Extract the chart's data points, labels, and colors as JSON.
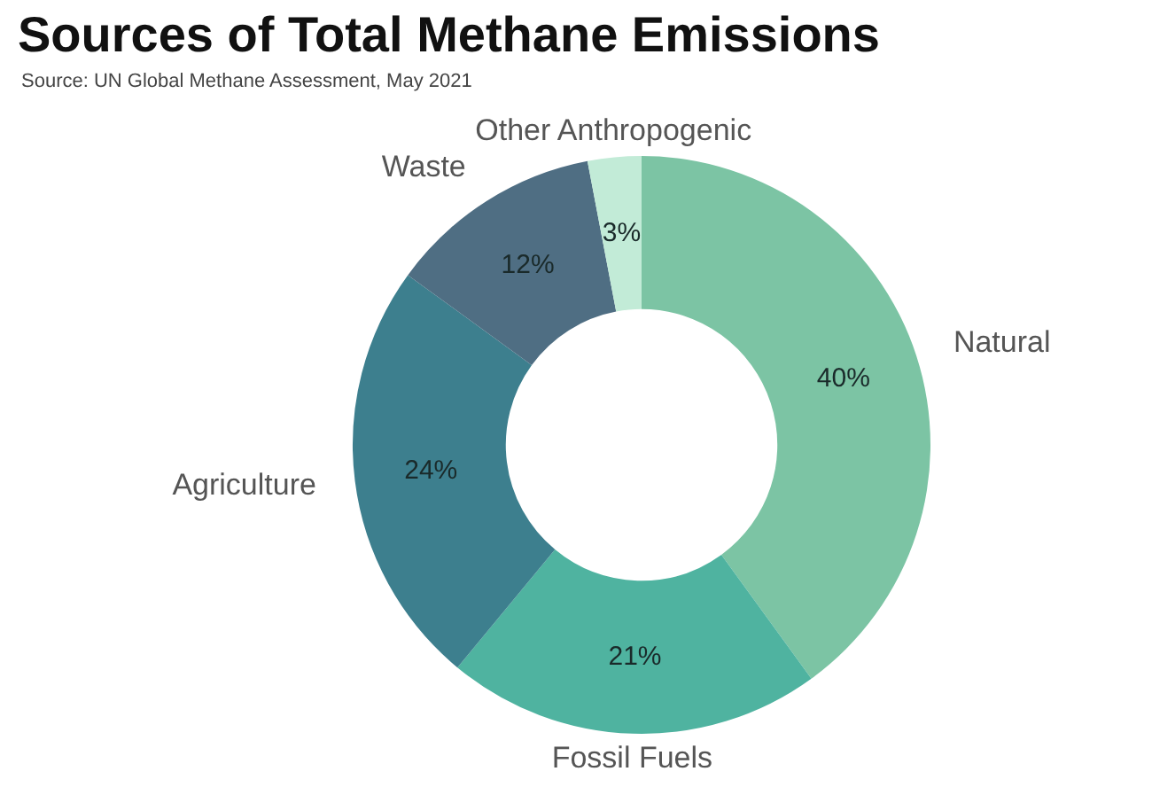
{
  "chart_data": {
    "type": "donut",
    "title": "Sources of Total Methane Emissions",
    "annotations": [
      "Source: UN Global Methane Assessment, May 2021"
    ],
    "categories": [
      "Natural",
      "Fossil Fuels",
      "Agriculture",
      "Waste",
      "Other Anthropogenic"
    ],
    "values": [
      40,
      21,
      24,
      12,
      3
    ],
    "value_labels": [
      "40%",
      "21%",
      "24%",
      "12%",
      "3%"
    ],
    "colors": [
      "#7cc4a4",
      "#4fb3a0",
      "#3d7f8e",
      "#4f6e83",
      "#c2ebd7"
    ]
  }
}
